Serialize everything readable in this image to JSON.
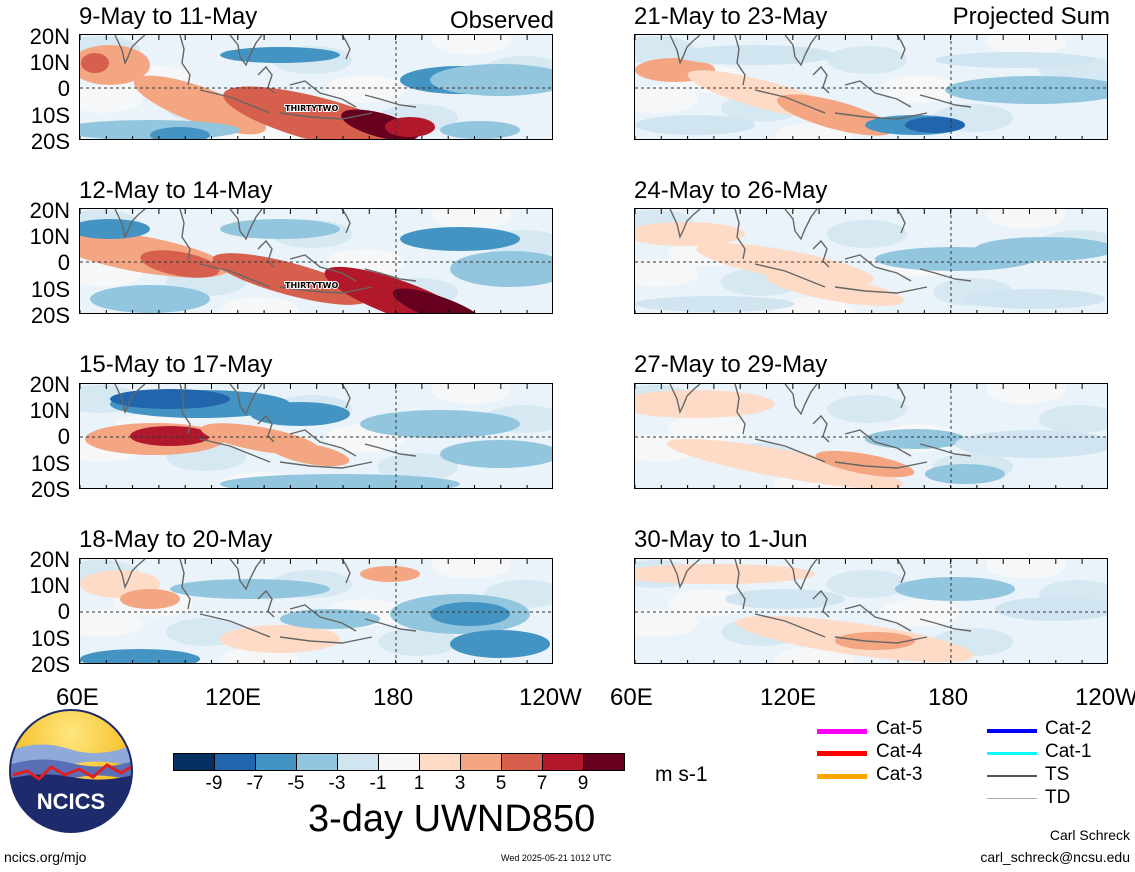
{
  "left_column_note": "Observed",
  "right_column_note": "Projected Sum",
  "latitude_labels": [
    "20N",
    "10N",
    "0",
    "10S",
    "20S"
  ],
  "longitude_labels": [
    "60E",
    "120E",
    "180",
    "120W"
  ],
  "panels": [
    {
      "title": "9-May to 11-May",
      "storm": "THIRTYTWO"
    },
    {
      "title": "12-May to 14-May",
      "storm": "THIRTYTWO"
    },
    {
      "title": "15-May to 17-May",
      "storm": ""
    },
    {
      "title": "18-May to 20-May",
      "storm": ""
    },
    {
      "title": "21-May to 23-May",
      "storm": ""
    },
    {
      "title": "24-May to 26-May",
      "storm": ""
    },
    {
      "title": "27-May to 29-May",
      "storm": ""
    },
    {
      "title": "30-May to 1-Jun",
      "storm": ""
    }
  ],
  "colorbar": {
    "labels": [
      "-9",
      "-7",
      "-5",
      "-3",
      "-1",
      "1",
      "3",
      "5",
      "7",
      "9"
    ],
    "colors": [
      "#053061",
      "#2166ac",
      "#4393c3",
      "#92c5de",
      "#d1e5f0",
      "#f7f7f7",
      "#fddbc7",
      "#f4a582",
      "#d6604d",
      "#b2182b",
      "#67001f"
    ],
    "units": "m s-1",
    "variable": "3-day UWND850"
  },
  "legend": [
    {
      "label": "Cat-5",
      "color": "#ff00ff"
    },
    {
      "label": "Cat-4",
      "color": "#ff0000"
    },
    {
      "label": "Cat-3",
      "color": "#ffa500"
    },
    {
      "label": "Cat-2",
      "color": "#0000ff"
    },
    {
      "label": "Cat-1",
      "color": "#00ffff"
    },
    {
      "label": "TS",
      "color": "#555555"
    },
    {
      "label": "TD",
      "color": "#aaaaaa"
    }
  ],
  "logo_text": "NCICS",
  "footer": {
    "url": "ncics.org/mjo",
    "timestamp": "Wed 2025-05-21 1012 UTC",
    "author": "Carl Schreck",
    "email": "carl_schreck@ncsu.edu"
  }
}
